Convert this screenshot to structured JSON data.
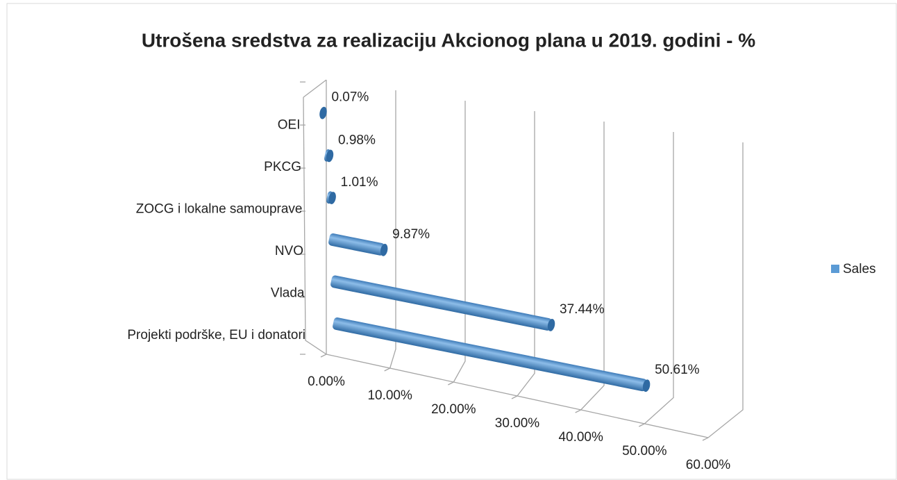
{
  "chart_data": {
    "type": "bar",
    "orientation": "horizontal",
    "title": "Utrošena sredstva za realizaciju Akcionog plana u 2019. godini - %",
    "categories": [
      "Projekti podrške, EU i donatori",
      "Vlada",
      "NVO",
      "ZOCG i lokalne samouprave",
      "PKCG",
      "OEI"
    ],
    "series": [
      {
        "name": "Sales",
        "color": "#5b9bd5",
        "values": [
          50.61,
          37.44,
          9.87,
          1.01,
          0.98,
          0.07
        ],
        "value_labels": [
          "50.61%",
          "37.44%",
          "9.87%",
          "1.01%",
          "0.98%",
          "0.07%"
        ]
      }
    ],
    "xlim": [
      0,
      60
    ],
    "xticks": [
      {
        "value": 0,
        "label": "0.00%"
      },
      {
        "value": 10,
        "label": "10.00%"
      },
      {
        "value": 20,
        "label": "20.00%"
      },
      {
        "value": 30,
        "label": "30.00%"
      },
      {
        "value": 40,
        "label": "40.00%"
      },
      {
        "value": 50,
        "label": "50.00%"
      },
      {
        "value": 60,
        "label": "60.00%"
      }
    ],
    "grid": true,
    "legend": "right"
  }
}
